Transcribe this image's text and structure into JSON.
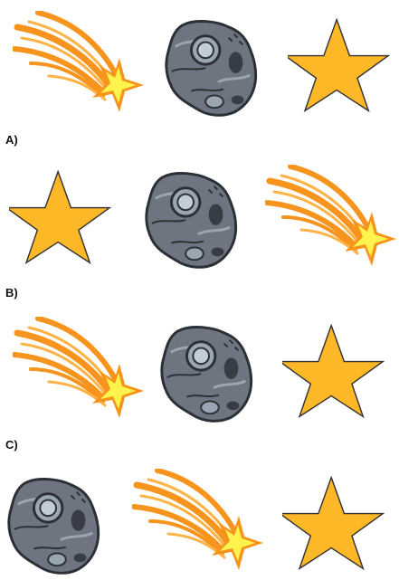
{
  "labels": {
    "a": "A)",
    "b": "B)",
    "c": "C)"
  },
  "rows": [
    {
      "id": "prompt",
      "items": [
        "shooting-star",
        "asteroid",
        "star"
      ]
    },
    {
      "id": "a",
      "items": [
        "star",
        "asteroid",
        "shooting-star"
      ]
    },
    {
      "id": "b",
      "items": [
        "shooting-star",
        "asteroid",
        "star"
      ]
    },
    {
      "id": "c",
      "items": [
        "asteroid",
        "shooting-star",
        "star"
      ]
    }
  ],
  "colors": {
    "star_fill": "#FDB827",
    "star_stroke": "#333333",
    "tail_orange": "#F7941D",
    "tail_light": "#FFB347",
    "shooting_star_core": "#FFF34D",
    "asteroid_fill": "#6E7480",
    "asteroid_dark": "#2B2F36",
    "asteroid_light": "#9AA6B2"
  }
}
